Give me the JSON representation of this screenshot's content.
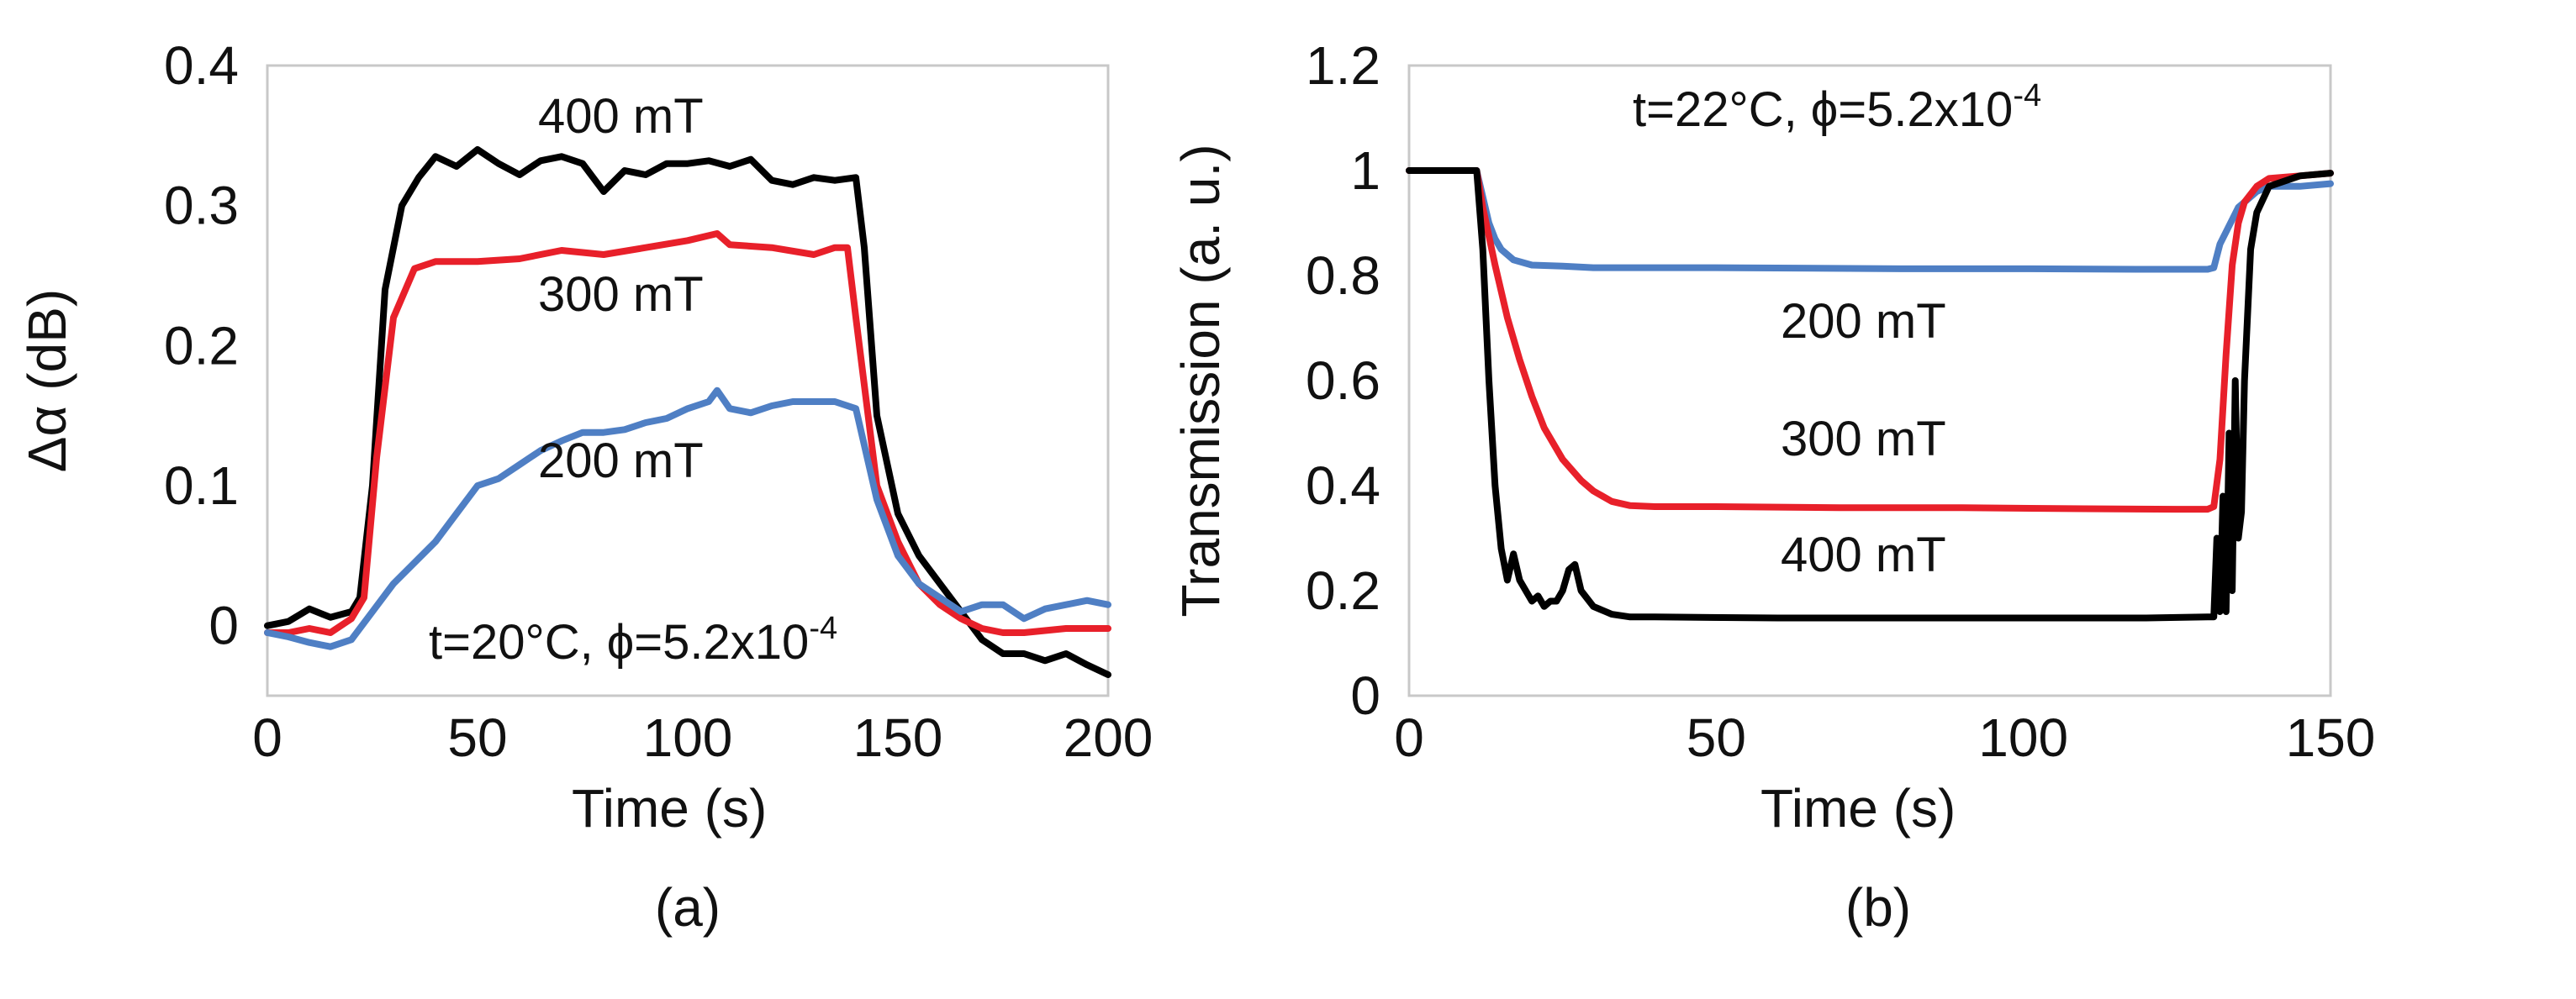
{
  "chart_data": [
    {
      "type": "line",
      "title": "",
      "caption": "(a)",
      "xlabel": "Time (s)",
      "ylabel": "Δα (dB)",
      "xlim": [
        0,
        200
      ],
      "ylim": [
        -0.05,
        0.4
      ],
      "xticks": [
        0,
        50,
        100,
        150,
        200
      ],
      "yticks": [
        0,
        0.1,
        0.2,
        0.3,
        0.4
      ],
      "xtick_labels": [
        "0",
        "50",
        "100",
        "150",
        "200"
      ],
      "ytick_labels": [
        "0",
        "0.1",
        "0.2",
        "0.3",
        "0.4"
      ],
      "grid": false,
      "annotation": {
        "prefix": "t=20°C, ϕ=5.2x10",
        "exponent": "-4"
      },
      "series": [
        {
          "name": "400 mT",
          "label": "400 mT",
          "color": "#000000",
          "x": [
            0,
            5,
            10,
            15,
            20,
            22,
            25,
            28,
            32,
            36,
            40,
            45,
            50,
            55,
            60,
            65,
            70,
            75,
            80,
            85,
            90,
            95,
            100,
            105,
            110,
            115,
            120,
            125,
            130,
            135,
            140,
            142,
            145,
            150,
            155,
            160,
            165,
            170,
            175,
            180,
            185,
            190,
            195,
            200
          ],
          "y": [
            0.0,
            0.003,
            0.012,
            0.006,
            0.01,
            0.02,
            0.1,
            0.24,
            0.3,
            0.32,
            0.335,
            0.328,
            0.34,
            0.33,
            0.322,
            0.332,
            0.335,
            0.33,
            0.31,
            0.325,
            0.322,
            0.33,
            0.33,
            0.332,
            0.328,
            0.333,
            0.318,
            0.315,
            0.32,
            0.318,
            0.32,
            0.27,
            0.15,
            0.08,
            0.05,
            0.03,
            0.01,
            -0.01,
            -0.02,
            -0.02,
            -0.025,
            -0.02,
            -0.028,
            -0.035
          ]
        },
        {
          "name": "300 mT",
          "label": "300 mT",
          "color": "#e8202a",
          "x": [
            0,
            5,
            10,
            15,
            20,
            23,
            26,
            30,
            35,
            40,
            50,
            60,
            70,
            80,
            90,
            100,
            107,
            110,
            120,
            130,
            135,
            138,
            140,
            145,
            150,
            155,
            160,
            165,
            170,
            175,
            180,
            190,
            200
          ],
          "y": [
            -0.005,
            -0.005,
            -0.002,
            -0.005,
            0.005,
            0.02,
            0.12,
            0.22,
            0.255,
            0.26,
            0.26,
            0.262,
            0.268,
            0.265,
            0.27,
            0.275,
            0.28,
            0.272,
            0.27,
            0.265,
            0.27,
            0.27,
            0.22,
            0.1,
            0.06,
            0.03,
            0.015,
            0.005,
            -0.002,
            -0.005,
            -0.005,
            -0.002,
            -0.002
          ]
        },
        {
          "name": "200 mT",
          "label": "200 mT",
          "color": "#4f7fc4",
          "x": [
            0,
            5,
            10,
            15,
            20,
            25,
            30,
            35,
            40,
            45,
            50,
            55,
            60,
            65,
            70,
            75,
            80,
            85,
            90,
            95,
            100,
            105,
            107,
            110,
            115,
            120,
            125,
            130,
            135,
            140,
            145,
            150,
            155,
            160,
            165,
            170,
            175,
            180,
            185,
            190,
            195,
            200
          ],
          "y": [
            -0.005,
            -0.008,
            -0.012,
            -0.015,
            -0.01,
            0.01,
            0.03,
            0.045,
            0.06,
            0.08,
            0.1,
            0.105,
            0.115,
            0.125,
            0.132,
            0.138,
            0.138,
            0.14,
            0.145,
            0.148,
            0.155,
            0.16,
            0.168,
            0.155,
            0.152,
            0.157,
            0.16,
            0.16,
            0.16,
            0.155,
            0.09,
            0.05,
            0.03,
            0.02,
            0.01,
            0.015,
            0.015,
            0.005,
            0.012,
            0.015,
            0.018,
            0.015
          ]
        }
      ]
    },
    {
      "type": "line",
      "title": "",
      "caption": "(b)",
      "xlabel": "Time (s)",
      "ylabel": "Transmission (a. u.)",
      "xlim": [
        0,
        150
      ],
      "ylim": [
        0,
        1.2
      ],
      "xticks": [
        0,
        50,
        100,
        150
      ],
      "yticks": [
        0,
        0.2,
        0.4,
        0.6,
        0.8,
        1,
        1.2
      ],
      "xtick_labels": [
        "0",
        "50",
        "100",
        "150"
      ],
      "ytick_labels": [
        "0",
        "0.2",
        "0.4",
        "0.6",
        "0.8",
        "1",
        "1.2"
      ],
      "grid": false,
      "annotation": {
        "prefix": "t=22°C, ϕ=5.2x10",
        "exponent": "-4"
      },
      "series": [
        {
          "name": "200 mT",
          "label": "200 mT",
          "color": "#4f7fc4",
          "x": [
            0,
            5,
            10,
            11,
            12,
            13,
            14,
            15,
            17,
            20,
            25,
            30,
            50,
            80,
            100,
            120,
            130,
            131,
            132,
            135,
            138,
            140,
            145,
            150
          ],
          "y": [
            1.0,
            1.0,
            1.0,
            1.0,
            0.95,
            0.9,
            0.87,
            0.85,
            0.83,
            0.82,
            0.818,
            0.815,
            0.815,
            0.813,
            0.813,
            0.812,
            0.812,
            0.815,
            0.86,
            0.93,
            0.96,
            0.97,
            0.97,
            0.975
          ]
        },
        {
          "name": "300 mT",
          "label": "300 mT",
          "color": "#e8202a",
          "x": [
            0,
            10,
            11,
            12,
            14,
            16,
            18,
            20,
            22,
            25,
            28,
            30,
            33,
            36,
            40,
            50,
            70,
            90,
            110,
            125,
            130,
            131,
            132,
            133,
            134,
            135,
            136,
            138,
            140,
            145,
            150
          ],
          "y": [
            1.0,
            1.0,
            1.0,
            0.93,
            0.82,
            0.72,
            0.64,
            0.57,
            0.51,
            0.45,
            0.41,
            0.39,
            0.37,
            0.362,
            0.36,
            0.36,
            0.358,
            0.358,
            0.356,
            0.355,
            0.355,
            0.36,
            0.45,
            0.65,
            0.82,
            0.9,
            0.94,
            0.97,
            0.985,
            0.99,
            0.995
          ]
        },
        {
          "name": "400 mT",
          "label": "400 mT",
          "color": "#000000",
          "x": [
            0,
            10,
            11,
            12,
            13,
            14,
            15,
            16,
            17,
            18,
            19,
            20,
            21,
            22,
            23,
            24,
            25,
            26,
            27,
            28,
            30,
            33,
            36,
            40,
            60,
            80,
            100,
            120,
            130,
            131,
            131.5,
            132,
            132.5,
            133,
            133.5,
            134,
            134.5,
            135,
            135.5,
            136,
            137,
            138,
            140,
            145,
            150
          ],
          "y": [
            1.0,
            1.0,
            1.0,
            0.85,
            0.6,
            0.4,
            0.28,
            0.22,
            0.27,
            0.22,
            0.2,
            0.18,
            0.19,
            0.17,
            0.18,
            0.18,
            0.2,
            0.24,
            0.25,
            0.2,
            0.17,
            0.155,
            0.15,
            0.15,
            0.148,
            0.148,
            0.148,
            0.148,
            0.15,
            0.15,
            0.3,
            0.16,
            0.38,
            0.16,
            0.5,
            0.2,
            0.6,
            0.3,
            0.35,
            0.6,
            0.85,
            0.92,
            0.97,
            0.99,
            0.995
          ]
        }
      ]
    }
  ]
}
